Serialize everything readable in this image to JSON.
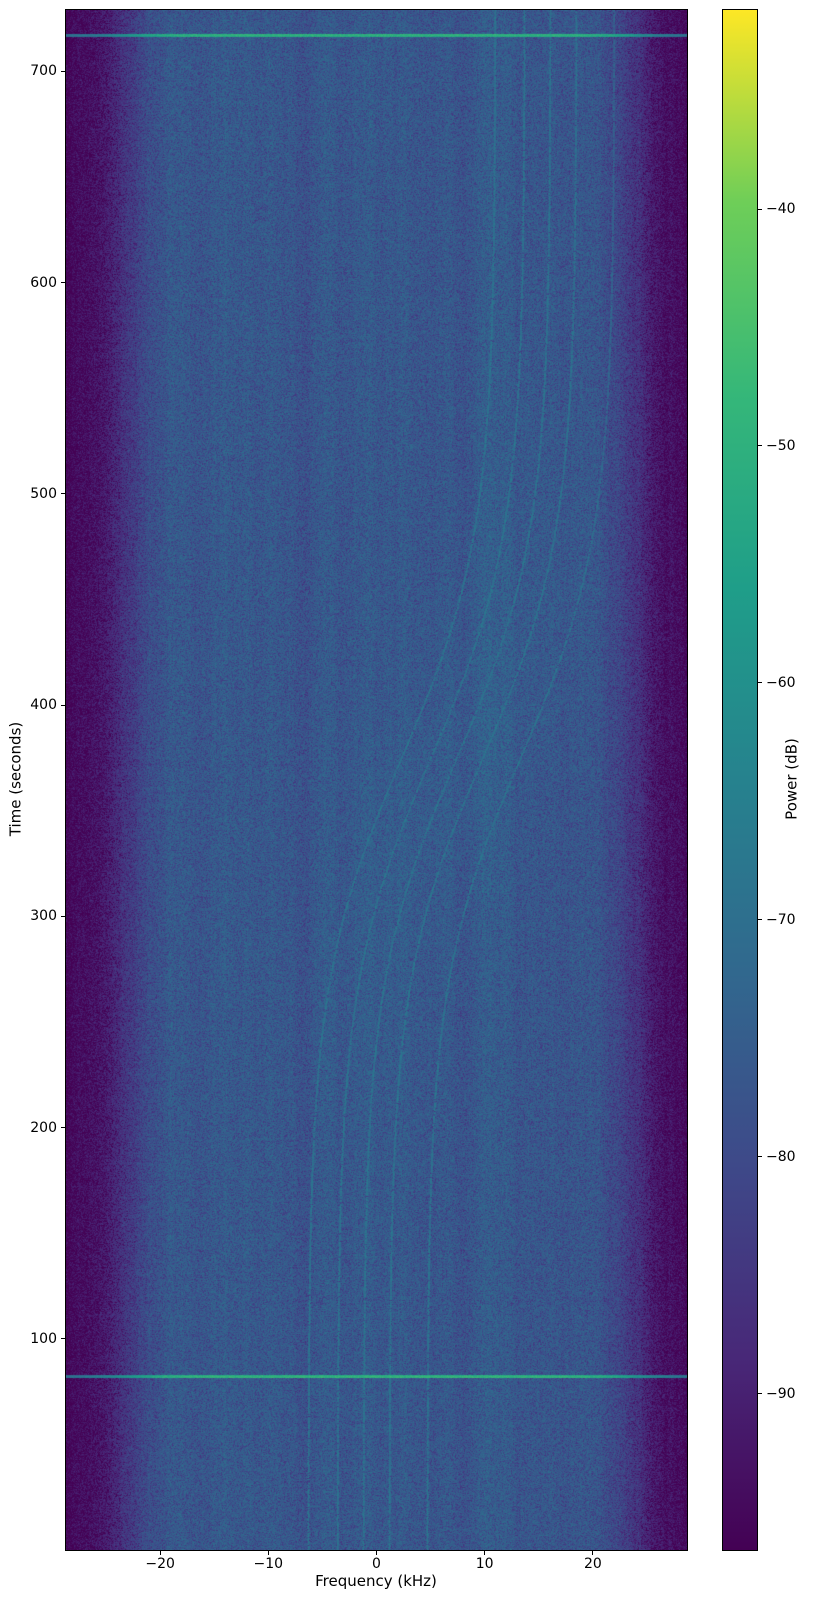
{
  "chart_data": {
    "type": "heatmap",
    "subtype": "doppler-spectrogram",
    "title": "",
    "xlabel": "Frequency (kHz)",
    "ylabel": "Time (seconds)",
    "x_range_khz": [
      -28.7,
      28.7
    ],
    "x_ticks": [
      -20,
      -10,
      0,
      10,
      20
    ],
    "y_range_seconds": [
      0,
      729
    ],
    "y_ticks": [
      100,
      200,
      300,
      400,
      500,
      600,
      700
    ],
    "grid": false,
    "colorbar": {
      "label": "Power (dB)",
      "ticks": [
        -40,
        -50,
        -60,
        -70,
        -80,
        -90
      ],
      "vmax_db": -31.6,
      "vmin_db": -96.6,
      "position": "right"
    },
    "colormap": {
      "name": "viridis",
      "stops": [
        [
          0.0,
          "#440154"
        ],
        [
          0.125,
          "#482878"
        ],
        [
          0.25,
          "#3e4989"
        ],
        [
          0.375,
          "#31688e"
        ],
        [
          0.5,
          "#26828e"
        ],
        [
          0.625,
          "#1f9e89"
        ],
        [
          0.75,
          "#35b779"
        ],
        [
          0.875,
          "#6ece58"
        ],
        [
          1.0,
          "#fde725"
        ]
      ]
    },
    "background_noise_db": -74.5,
    "edge_rolloff": {
      "left_center_khz": -23.3,
      "right_center_khz": 24.3,
      "width_khz": 1.85,
      "depth_db": -21
    },
    "features": {
      "horizontal_lines": [
        {
          "time_s": 82,
          "power_db": -49
        },
        {
          "time_s": 717,
          "power_db": -50
        }
      ],
      "doppler_traces": {
        "base_freqs_khz": [
          -6.3,
          -3.6,
          -1.2,
          1.2,
          4.7
        ],
        "doppler_shift_khz": 17.3,
        "transition_mid_s": 375,
        "transition_tau_s": 52,
        "power_db": -67.5,
        "haze_amplitude_db": 1.4,
        "haze_sigma_khz": 7.5,
        "haze_time_sigma_s": 165
      }
    }
  }
}
